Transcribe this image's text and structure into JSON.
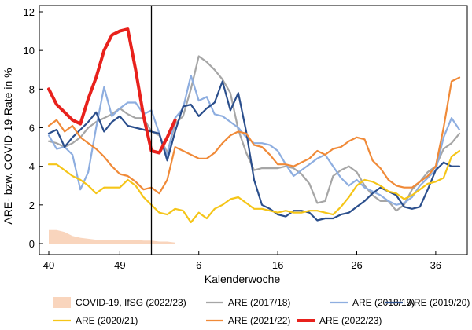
{
  "chart_data": {
    "type": "line",
    "title": "",
    "xlabel": "Kalenderwoche",
    "ylabel": "ARE- bzw. COVID-19-Rate in %",
    "ylim": [
      0,
      12
    ],
    "yticks": [
      0,
      2,
      4,
      6,
      8,
      10,
      12
    ],
    "xticks": [
      {
        "week": 40,
        "label": "40"
      },
      {
        "week": 49,
        "label": "49"
      },
      {
        "week": 6,
        "label": "6"
      },
      {
        "week": 16,
        "label": "16"
      },
      {
        "week": 26,
        "label": "26"
      },
      {
        "week": 36,
        "label": "36"
      }
    ],
    "x_weeks": [
      40,
      41,
      42,
      43,
      44,
      45,
      46,
      47,
      48,
      49,
      50,
      51,
      52,
      53,
      1,
      2,
      3,
      4,
      5,
      6,
      7,
      8,
      9,
      10,
      11,
      12,
      13,
      14,
      15,
      16,
      17,
      18,
      19,
      20,
      21,
      22,
      23,
      24,
      25,
      26,
      27,
      28,
      29,
      30,
      31,
      32,
      33,
      34,
      35,
      36,
      37,
      38,
      39
    ],
    "reference_line_week": 53,
    "grid": false,
    "legend_position": "bottom",
    "series": [
      {
        "name": "COVID-19, IfSG (2022/23)",
        "style": "area",
        "color": "#f9d5bd",
        "values": [
          0.7,
          0.7,
          0.6,
          0.4,
          0.3,
          0.25,
          0.2,
          0.2,
          0.2,
          0.2,
          0.2,
          0.2,
          0.15,
          0.15,
          0.1,
          0.1,
          0.05
        ]
      },
      {
        "name": "ARE (2017/18)",
        "color": "#a6a6a6",
        "values": [
          5.3,
          5.2,
          5.0,
          5.2,
          5.5,
          6.0,
          6.3,
          6.5,
          6.7,
          7.0,
          6.7,
          6.5,
          6.5,
          5.8,
          5.6,
          4.7,
          6.2,
          6.6,
          8.0,
          9.7,
          9.4,
          9.0,
          8.5,
          7.8,
          5.9,
          4.7,
          3.8,
          3.9,
          3.9,
          3.9,
          4.0,
          3.9,
          3.6,
          3.1,
          2.1,
          2.2,
          3.5,
          3.8,
          4.0,
          3.7,
          3.0,
          2.5,
          2.2,
          2.2,
          1.7,
          2.0,
          2.8,
          3.2,
          3.7,
          4.0,
          4.9,
          5.2,
          5.7
        ]
      },
      {
        "name": "ARE (2018/19)",
        "color": "#8eaee0",
        "values": [
          5.6,
          4.9,
          5.0,
          4.6,
          2.8,
          3.7,
          6.0,
          8.1,
          6.6,
          7.0,
          7.3,
          7.3,
          6.7,
          6.9,
          5.7,
          4.5,
          6.5,
          7.0,
          8.7,
          7.4,
          7.6,
          6.7,
          6.6,
          6.3,
          6.0,
          5.5,
          5.2,
          5.2,
          5.1,
          4.8,
          4.1,
          3.5,
          3.8,
          4.1,
          4.4,
          4.6,
          4.0,
          3.4,
          3.0,
          3.3,
          2.9,
          2.7,
          2.5,
          2.2,
          2.0,
          2.1,
          2.4,
          3.0,
          3.4,
          3.8,
          5.5,
          6.5,
          5.9
        ]
      },
      {
        "name": "ARE (2019/20)",
        "color": "#2a4e8c",
        "values": [
          5.7,
          5.9,
          5.0,
          5.5,
          5.9,
          6.3,
          6.8,
          5.8,
          6.3,
          6.6,
          6.1,
          6.0,
          5.9,
          5.8,
          5.7,
          4.3,
          5.8,
          7.1,
          7.2,
          6.6,
          7.0,
          7.3,
          8.4,
          6.9,
          7.8,
          5.8,
          3.3,
          2.0,
          1.8,
          1.5,
          1.4,
          1.7,
          1.7,
          1.6,
          1.2,
          1.3,
          1.3,
          1.5,
          1.6,
          1.9,
          2.2,
          2.6,
          2.9,
          2.7,
          2.5,
          1.9,
          1.8,
          1.9,
          2.8,
          3.8,
          4.2,
          4.0,
          4.0
        ]
      },
      {
        "name": "ARE (2020/21)",
        "color": "#f5c518",
        "values": [
          4.1,
          4.1,
          3.8,
          3.5,
          3.3,
          3.0,
          2.6,
          2.9,
          2.9,
          2.9,
          3.3,
          3.0,
          2.4,
          2.0,
          1.6,
          1.5,
          1.8,
          1.7,
          1.1,
          1.6,
          1.3,
          1.8,
          2.0,
          2.3,
          2.4,
          2.1,
          1.8,
          1.8,
          1.7,
          1.6,
          1.7,
          1.6,
          1.6,
          1.7,
          1.7,
          1.6,
          1.5,
          1.9,
          2.4,
          3.0,
          3.3,
          3.2,
          3.0,
          2.7,
          2.6,
          2.3,
          2.5,
          2.8,
          3.1,
          3.2,
          3.4,
          4.5,
          4.8
        ]
      },
      {
        "name": "ARE (2021/22)",
        "color": "#f08a38",
        "values": [
          6.1,
          6.4,
          5.8,
          6.1,
          5.5,
          5.2,
          4.9,
          4.5,
          4.0,
          3.6,
          3.5,
          3.2,
          2.8,
          2.9,
          2.6,
          3.3,
          5.0,
          4.8,
          4.6,
          4.4,
          4.4,
          4.7,
          5.2,
          5.6,
          5.8,
          5.7,
          5.1,
          5.0,
          4.6,
          4.1,
          4.1,
          4.0,
          4.2,
          4.4,
          4.8,
          4.6,
          4.9,
          5.0,
          5.3,
          5.5,
          5.4,
          4.3,
          3.9,
          3.3,
          3.0,
          2.9,
          2.9,
          3.2,
          3.5,
          4.0,
          6.0,
          8.4,
          8.6
        ]
      },
      {
        "name": "ARE (2022/23)",
        "color": "#e8211c",
        "values": [
          8.0,
          7.2,
          6.8,
          6.4,
          6.2,
          7.5,
          8.6,
          10.0,
          10.8,
          11.0,
          11.1,
          9.0,
          6.6,
          4.8,
          4.7,
          5.5,
          6.4
        ]
      }
    ]
  }
}
